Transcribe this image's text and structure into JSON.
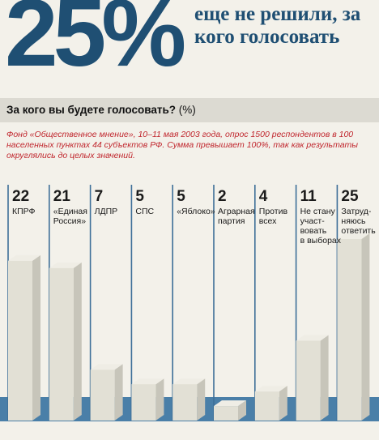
{
  "headline": {
    "big_value": "25%",
    "text": "еще не решили, за кого голосовать"
  },
  "question": {
    "bold": "За кого вы будете голосовать?",
    "unit": "(%)"
  },
  "note": "Фонд «Общественное мнение», 10–11 мая 2003 года, опрос 1500 респондентов в 100 населенных пунктах 44 субъектов РФ. Сумма превышает 100%, так как результаты округлялись до целых значений.",
  "colors": {
    "accent": "#1f4f73",
    "band": "#4a7fa8",
    "bar_front": "#e2e0d5",
    "bar_side": "#c7c5ba",
    "bar_top": "#efede5",
    "divider": "#3d6f98",
    "note_red": "#c0262d"
  },
  "chart_data": {
    "type": "bar",
    "title": "За кого вы будете голосовать?",
    "unit": "(%)",
    "categories": [
      "КПРФ",
      "«Единая Россия»",
      "ЛДПР",
      "СПС",
      "«Яблоко»",
      "Аграрная партия",
      "Против всех",
      "Не стану участвовать в выборах",
      "Затрудняюсь ответить"
    ],
    "labels_display": [
      "КПРФ",
      "«Единая\nРоссия»",
      "ЛДПР",
      "СПС",
      "«Яблоко»",
      "Аграрная\nпартия",
      "Против\nвсех",
      "Не стану\nучаст-\nвовать\nв выборах",
      "Затруд-\nняюсь\nответить"
    ],
    "values": [
      22,
      21,
      7,
      5,
      5,
      2,
      4,
      11,
      25
    ],
    "ylim": [
      0,
      25
    ]
  }
}
